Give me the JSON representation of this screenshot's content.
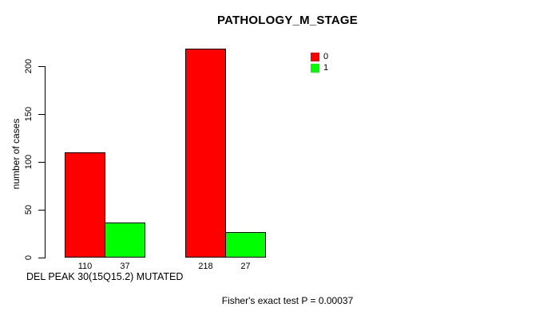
{
  "chart_data": {
    "type": "bar",
    "title": "PATHOLOGY_M_STAGE",
    "ylabel": "number of cases",
    "xlabel": "DEL PEAK 30(15Q15.2) MUTATED",
    "footnote": "Fisher's exact test P = 0.00037",
    "series": [
      {
        "name": "0",
        "color": "#ff0000",
        "values": [
          110,
          218
        ]
      },
      {
        "name": "1",
        "color": "#00ff00",
        "values": [
          37,
          27
        ]
      }
    ],
    "bar_value_labels": [
      [
        "110",
        "37"
      ],
      [
        "218",
        "27"
      ]
    ],
    "yticks": [
      0,
      50,
      100,
      150,
      200
    ],
    "ylim": [
      0,
      220
    ],
    "grid": false,
    "legend_position": "top-right"
  },
  "colors": {
    "series0": "#ff0000",
    "series1": "#00ff00",
    "text": "#000000",
    "background": "#ffffff"
  }
}
